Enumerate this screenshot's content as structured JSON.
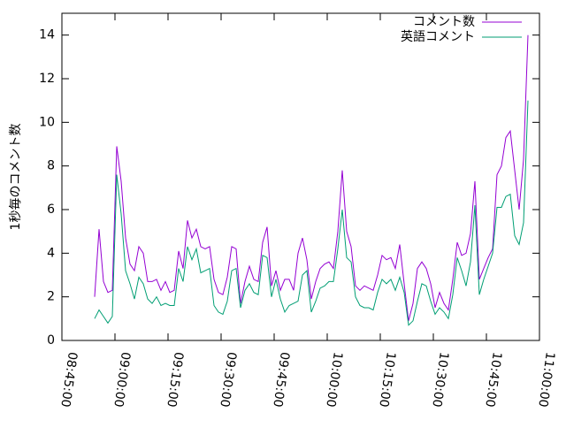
{
  "chart_data": {
    "type": "line",
    "ylabel": "1秒毎のコメント数",
    "x": [
      32055,
      32130,
      32205,
      32280,
      32355,
      32430,
      32505,
      32580,
      32655,
      32730,
      32805,
      32880,
      32955,
      33030,
      33105,
      33180,
      33255,
      33330,
      33405,
      33480,
      33555,
      33630,
      33705,
      33780,
      33855,
      33930,
      34005,
      34080,
      34155,
      34230,
      34305,
      34380,
      34455,
      34530,
      34605,
      34680,
      34755,
      34830,
      34905,
      34980,
      35055,
      35130,
      35205,
      35280,
      35355,
      35430,
      35505,
      35580,
      35655,
      35730,
      35805,
      35880,
      35955,
      36030,
      36105,
      36180,
      36255,
      36330,
      36405,
      36480,
      36555,
      36630,
      36705,
      36780,
      36855,
      36930,
      37005,
      37080,
      37155,
      37230,
      37305,
      37380,
      37455,
      37530,
      37605,
      37680,
      37755,
      37830,
      37905,
      37980,
      38055,
      38130,
      38205,
      38280,
      38355,
      38430,
      38505,
      38580,
      38655,
      38730,
      38805,
      38880,
      38955,
      39030,
      39105,
      39180,
      39255,
      39330,
      39405
    ],
    "series": [
      {
        "name": "コメント数",
        "color": "#9400d3",
        "values": [
          2.0,
          5.1,
          2.7,
          2.2,
          2.3,
          8.9,
          7.3,
          4.7,
          3.5,
          3.2,
          4.3,
          4.0,
          2.7,
          2.7,
          2.8,
          2.3,
          2.7,
          2.2,
          2.3,
          4.1,
          3.3,
          5.5,
          4.7,
          5.1,
          4.3,
          4.2,
          4.3,
          2.8,
          2.2,
          2.1,
          2.9,
          4.3,
          4.2,
          1.7,
          2.7,
          3.4,
          2.8,
          2.7,
          4.5,
          5.2,
          2.5,
          3.2,
          2.3,
          2.8,
          2.8,
          2.3,
          4.0,
          4.7,
          3.7,
          1.9,
          2.7,
          3.3,
          3.5,
          3.6,
          3.3,
          5.0,
          7.8,
          5.0,
          4.3,
          2.5,
          2.3,
          2.5,
          2.4,
          2.3,
          3.0,
          3.9,
          3.7,
          3.8,
          3.3,
          4.4,
          2.6,
          0.9,
          1.7,
          3.3,
          3.6,
          3.3,
          2.6,
          1.5,
          2.2,
          1.7,
          1.4,
          2.8,
          4.5,
          3.9,
          4.0,
          4.9,
          7.3,
          2.8,
          3.3,
          3.8,
          4.2,
          7.6,
          8.0,
          9.3,
          9.6,
          7.8,
          6.0,
          8.3,
          14.0
        ]
      },
      {
        "name": "英語コメント",
        "color": "#009e73",
        "values": [
          1.0,
          1.4,
          1.1,
          0.8,
          1.1,
          7.6,
          5.8,
          3.2,
          2.6,
          1.9,
          2.9,
          2.6,
          1.9,
          1.7,
          2.0,
          1.6,
          1.7,
          1.6,
          1.6,
          3.3,
          2.7,
          4.3,
          3.7,
          4.2,
          3.1,
          3.2,
          3.3,
          1.6,
          1.3,
          1.2,
          1.8,
          3.2,
          3.3,
          1.5,
          2.3,
          2.6,
          2.2,
          2.1,
          3.9,
          3.8,
          2.0,
          2.8,
          1.9,
          1.3,
          1.6,
          1.7,
          1.8,
          3.0,
          3.2,
          1.3,
          1.8,
          2.4,
          2.5,
          2.7,
          2.7,
          4.2,
          6.0,
          3.8,
          3.6,
          2.0,
          1.6,
          1.5,
          1.5,
          1.4,
          2.2,
          2.8,
          2.6,
          2.8,
          2.3,
          2.9,
          2.2,
          0.7,
          0.9,
          1.8,
          2.6,
          2.5,
          1.8,
          1.2,
          1.5,
          1.3,
          1.0,
          2.1,
          3.8,
          3.2,
          2.5,
          3.6,
          6.2,
          2.1,
          2.8,
          3.4,
          4.0,
          6.1,
          6.1,
          6.6,
          6.7,
          4.8,
          4.4,
          5.4,
          11.0
        ]
      }
    ],
    "xlim": [
      31500,
      39600
    ],
    "xticks": [
      {
        "value": 31500,
        "label": "08:45:00"
      },
      {
        "value": 32400,
        "label": "09:00:00"
      },
      {
        "value": 33300,
        "label": "09:15:00"
      },
      {
        "value": 34200,
        "label": "09:30:00"
      },
      {
        "value": 35100,
        "label": "09:45:00"
      },
      {
        "value": 36000,
        "label": "10:00:00"
      },
      {
        "value": 36900,
        "label": "10:15:00"
      },
      {
        "value": 37800,
        "label": "10:30:00"
      },
      {
        "value": 38700,
        "label": "10:45:00"
      },
      {
        "value": 39600,
        "label": "11:00:00"
      }
    ],
    "ylim": [
      0,
      15
    ],
    "yticks": [
      0,
      2,
      4,
      6,
      8,
      10,
      12,
      14
    ],
    "legend": "upper right"
  }
}
